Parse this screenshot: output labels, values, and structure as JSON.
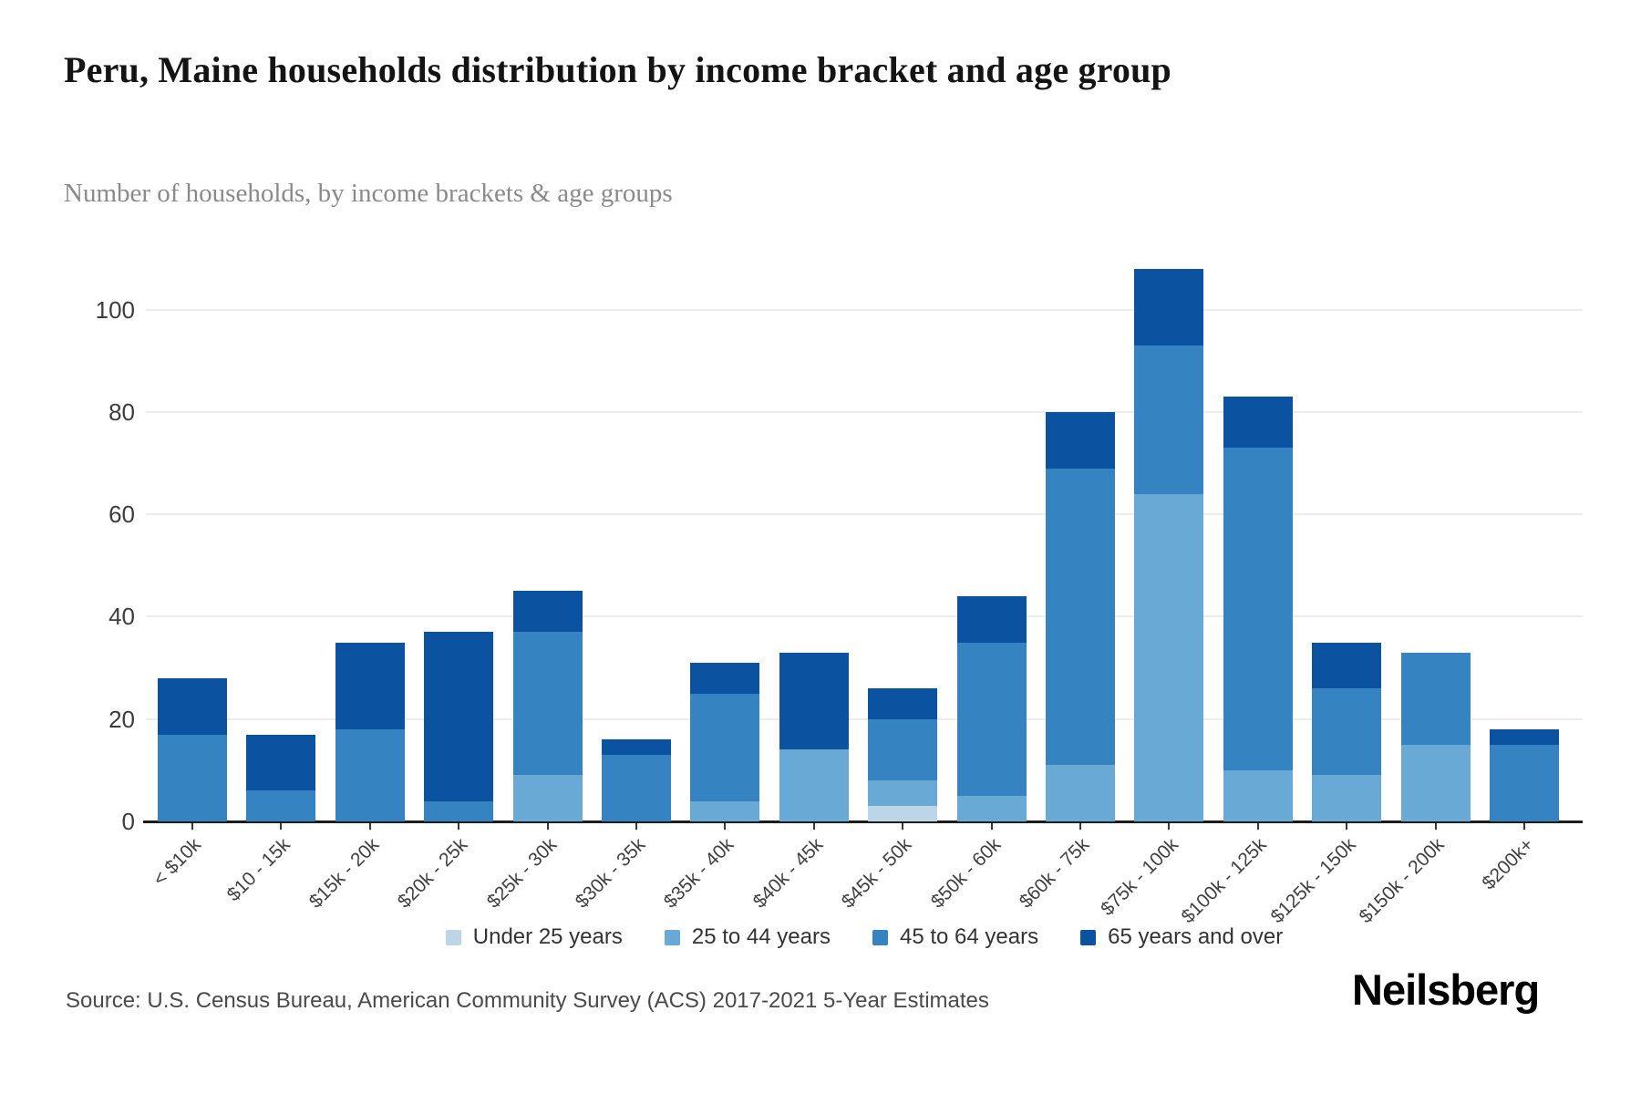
{
  "header": {
    "title": "Peru, Maine households distribution by income bracket and age group",
    "subtitle": "Number of households, by income brackets & age groups"
  },
  "footer": {
    "source": "Source: U.S. Census Bureau, American Community Survey (ACS) 2017-2021 5-Year Estimates",
    "brand": "Neilsberg"
  },
  "colors": {
    "under_25": "#bcd6e8",
    "age_25_44": "#68aad5",
    "age_45_64": "#3583c1",
    "age_65_over": "#0b53a0",
    "gridline": "#ededed",
    "axis": "#1c1c1c",
    "separator": "#ffffff"
  },
  "chart_data": {
    "type": "bar",
    "stacked": true,
    "title": "Peru, Maine households distribution by income bracket and age group",
    "xlabel": "",
    "ylabel": "Number of households",
    "categories": [
      "< $10k",
      "$10 - 15k",
      "$15k - 20k",
      "$20k - 25k",
      "$25k - 30k",
      "$30k - 35k",
      "$35k - 40k",
      "$40k - 45k",
      "$45k - 50k",
      "$50k - 60k",
      "$60k - 75k",
      "$75k - 100k",
      "$100k - 125k",
      "$125k - 150k",
      "$150k - 200k",
      "$200k+"
    ],
    "series": [
      {
        "name": "Under 25 years",
        "color": "#bcd6e8",
        "values": [
          0,
          0,
          0,
          0,
          0,
          0,
          0,
          0,
          3,
          0,
          0,
          0,
          0,
          0,
          0,
          0
        ]
      },
      {
        "name": "25 to 44 years",
        "color": "#68aad5",
        "values": [
          0,
          0,
          0,
          0,
          9,
          0,
          4,
          14,
          5,
          5,
          11,
          64,
          10,
          9,
          15,
          0
        ]
      },
      {
        "name": "45 to 64 years",
        "color": "#3583c1",
        "values": [
          17,
          6,
          18,
          4,
          28,
          13,
          21,
          0,
          12,
          30,
          58,
          29,
          63,
          17,
          18,
          15
        ]
      },
      {
        "name": "65 years and over",
        "color": "#0b53a0",
        "values": [
          11,
          11,
          17,
          33,
          8,
          3,
          6,
          19,
          6,
          9,
          11,
          15,
          10,
          9,
          0,
          3
        ]
      }
    ],
    "totals": [
      28,
      17,
      35,
      37,
      45,
      16,
      31,
      33,
      26,
      44,
      80,
      108,
      83,
      35,
      33,
      18
    ],
    "yticks": [
      0,
      20,
      40,
      60,
      80,
      100
    ],
    "ylim": [
      0,
      109
    ],
    "grid": "horizontal",
    "legend_position": "bottom"
  }
}
